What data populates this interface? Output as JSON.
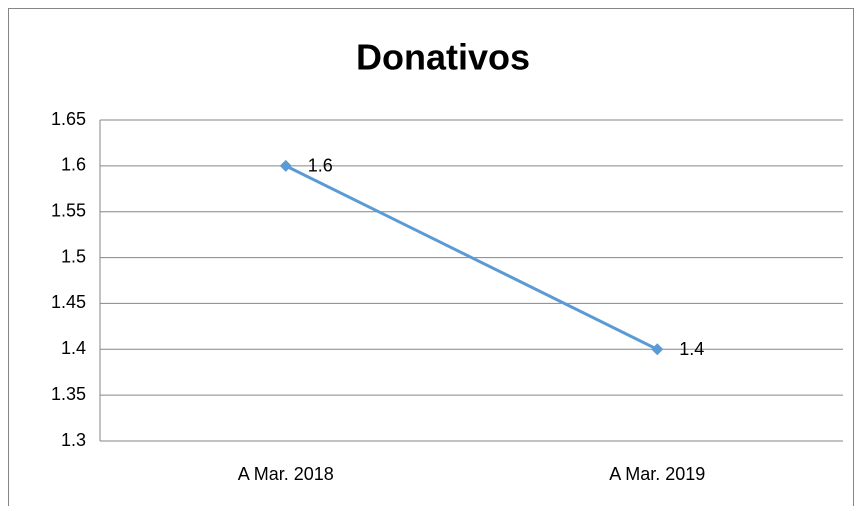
{
  "chart_data": {
    "type": "line",
    "title": "Donativos",
    "categories": [
      "A Mar. 2018",
      "A Mar. 2019"
    ],
    "series": [
      {
        "name": "Donativos",
        "color": "#5b9bd5",
        "values": [
          1.6,
          1.4
        ]
      }
    ],
    "ylim": [
      1.3,
      1.65
    ],
    "yticks": [
      1.3,
      1.35,
      1.4,
      1.45,
      1.5,
      1.55,
      1.6,
      1.65
    ],
    "grid": true
  }
}
